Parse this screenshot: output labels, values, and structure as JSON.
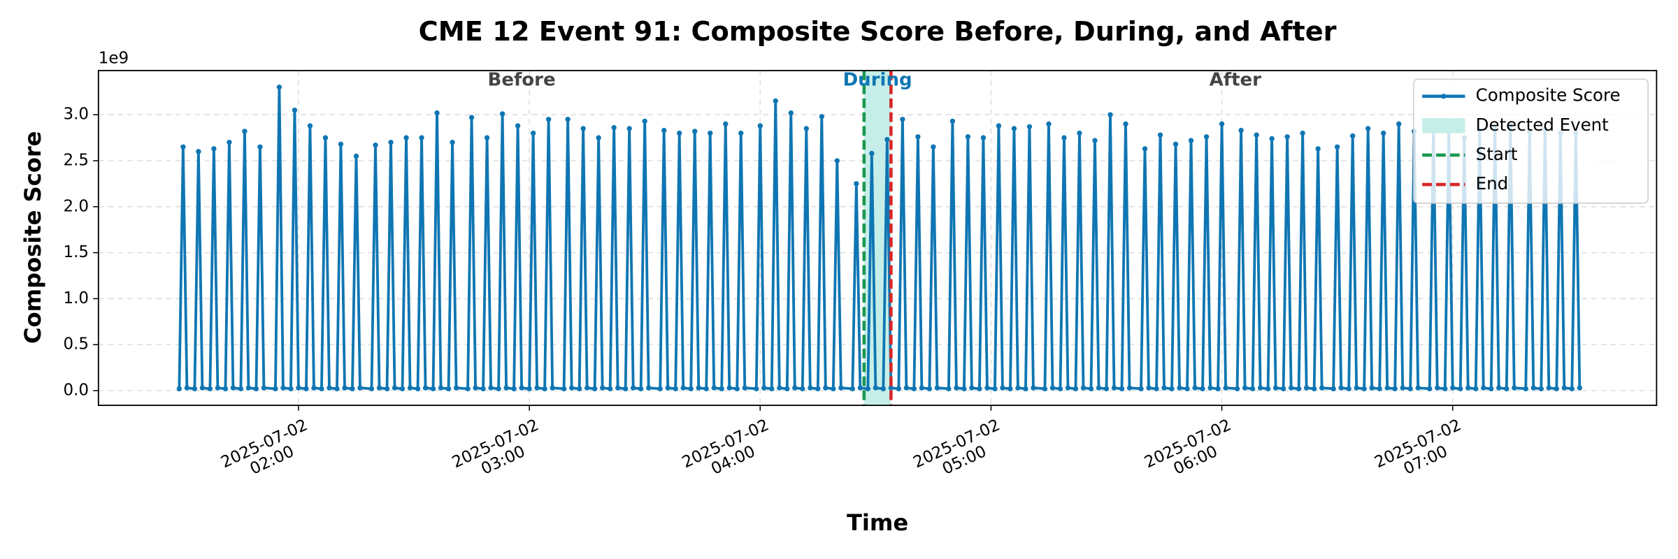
{
  "chart_data": {
    "type": "line",
    "title": "CME 12 Event 91: Composite Score Before, During, and After",
    "xlabel": "Time",
    "ylabel": "Composite Score",
    "y_offset_label": "1e9",
    "x": [
      "2025-07-02 01:29",
      "2025-07-02 01:30",
      "2025-07-02 01:31",
      "2025-07-02 01:33",
      "2025-07-02 01:34",
      "2025-07-02 01:35",
      "2025-07-02 01:37",
      "2025-07-02 01:38",
      "2025-07-02 01:39",
      "2025-07-02 01:41",
      "2025-07-02 01:42",
      "2025-07-02 01:43",
      "2025-07-02 01:45",
      "2025-07-02 01:46",
      "2025-07-02 01:47",
      "2025-07-02 01:49",
      "2025-07-02 01:50",
      "2025-07-02 01:51",
      "2025-07-02 01:54",
      "2025-07-02 01:55",
      "2025-07-02 01:56",
      "2025-07-02 01:58",
      "2025-07-02 01:59",
      "2025-07-02 02:00",
      "2025-07-02 02:02",
      "2025-07-02 02:03",
      "2025-07-02 02:04",
      "2025-07-02 02:06",
      "2025-07-02 02:07",
      "2025-07-02 02:08",
      "2025-07-02 02:10",
      "2025-07-02 02:11",
      "2025-07-02 02:12",
      "2025-07-02 02:14",
      "2025-07-02 02:15",
      "2025-07-02 02:16",
      "2025-07-02 02:19",
      "2025-07-02 02:20",
      "2025-07-02 02:21",
      "2025-07-02 02:23",
      "2025-07-02 02:24",
      "2025-07-02 02:25",
      "2025-07-02 02:27",
      "2025-07-02 02:28",
      "2025-07-02 02:29",
      "2025-07-02 02:31",
      "2025-07-02 02:32",
      "2025-07-02 02:33",
      "2025-07-02 02:35",
      "2025-07-02 02:36",
      "2025-07-02 02:37",
      "2025-07-02 02:39",
      "2025-07-02 02:40",
      "2025-07-02 02:41",
      "2025-07-02 02:44",
      "2025-07-02 02:45",
      "2025-07-02 02:46",
      "2025-07-02 02:48",
      "2025-07-02 02:49",
      "2025-07-02 02:50",
      "2025-07-02 02:52",
      "2025-07-02 02:53",
      "2025-07-02 02:54",
      "2025-07-02 02:56",
      "2025-07-02 02:57",
      "2025-07-02 02:58",
      "2025-07-02 03:00",
      "2025-07-02 03:01",
      "2025-07-02 03:02",
      "2025-07-02 03:04",
      "2025-07-02 03:05",
      "2025-07-02 03:06",
      "2025-07-02 03:09",
      "2025-07-02 03:10",
      "2025-07-02 03:11",
      "2025-07-02 03:13",
      "2025-07-02 03:14",
      "2025-07-02 03:15",
      "2025-07-02 03:17",
      "2025-07-02 03:18",
      "2025-07-02 03:19",
      "2025-07-02 03:21",
      "2025-07-02 03:22",
      "2025-07-02 03:23",
      "2025-07-02 03:25",
      "2025-07-02 03:26",
      "2025-07-02 03:27",
      "2025-07-02 03:29",
      "2025-07-02 03:30",
      "2025-07-02 03:31",
      "2025-07-02 03:34",
      "2025-07-02 03:35",
      "2025-07-02 03:36",
      "2025-07-02 03:38",
      "2025-07-02 03:39",
      "2025-07-02 03:40",
      "2025-07-02 03:42",
      "2025-07-02 03:43",
      "2025-07-02 03:44",
      "2025-07-02 03:46",
      "2025-07-02 03:47",
      "2025-07-02 03:48",
      "2025-07-02 03:50",
      "2025-07-02 03:51",
      "2025-07-02 03:52",
      "2025-07-02 03:54",
      "2025-07-02 03:55",
      "2025-07-02 03:56",
      "2025-07-02 03:59",
      "2025-07-02 04:00",
      "2025-07-02 04:01",
      "2025-07-02 04:03",
      "2025-07-02 04:04",
      "2025-07-02 04:05",
      "2025-07-02 04:07",
      "2025-07-02 04:08",
      "2025-07-02 04:09",
      "2025-07-02 04:11",
      "2025-07-02 04:12",
      "2025-07-02 04:13",
      "2025-07-02 04:15",
      "2025-07-02 04:16",
      "2025-07-02 04:17",
      "2025-07-02 04:19",
      "2025-07-02 04:20",
      "2025-07-02 04:21",
      "2025-07-02 04:24",
      "2025-07-02 04:25",
      "2025-07-02 04:26",
      "2025-07-02 04:28",
      "2025-07-02 04:29",
      "2025-07-02 04:30",
      "2025-07-02 04:32",
      "2025-07-02 04:33",
      "2025-07-02 04:34",
      "2025-07-02 04:36",
      "2025-07-02 04:37",
      "2025-07-02 04:38",
      "2025-07-02 04:40",
      "2025-07-02 04:41",
      "2025-07-02 04:42",
      "2025-07-02 04:44",
      "2025-07-02 04:45",
      "2025-07-02 04:46",
      "2025-07-02 04:49",
      "2025-07-02 04:50",
      "2025-07-02 04:51",
      "2025-07-02 04:53",
      "2025-07-02 04:54",
      "2025-07-02 04:55",
      "2025-07-02 04:57",
      "2025-07-02 04:58",
      "2025-07-02 04:59",
      "2025-07-02 05:01",
      "2025-07-02 05:02",
      "2025-07-02 05:03",
      "2025-07-02 05:05",
      "2025-07-02 05:06",
      "2025-07-02 05:07",
      "2025-07-02 05:09",
      "2025-07-02 05:10",
      "2025-07-02 05:11",
      "2025-07-02 05:14",
      "2025-07-02 05:15",
      "2025-07-02 05:16",
      "2025-07-02 05:18",
      "2025-07-02 05:19",
      "2025-07-02 05:20",
      "2025-07-02 05:22",
      "2025-07-02 05:23",
      "2025-07-02 05:24",
      "2025-07-02 05:26",
      "2025-07-02 05:27",
      "2025-07-02 05:28",
      "2025-07-02 05:30",
      "2025-07-02 05:31",
      "2025-07-02 05:32",
      "2025-07-02 05:34",
      "2025-07-02 05:35",
      "2025-07-02 05:36",
      "2025-07-02 05:39",
      "2025-07-02 05:40",
      "2025-07-02 05:41",
      "2025-07-02 05:43",
      "2025-07-02 05:44",
      "2025-07-02 05:45",
      "2025-07-02 05:47",
      "2025-07-02 05:48",
      "2025-07-02 05:49",
      "2025-07-02 05:51",
      "2025-07-02 05:52",
      "2025-07-02 05:53",
      "2025-07-02 05:55",
      "2025-07-02 05:56",
      "2025-07-02 05:57",
      "2025-07-02 05:59",
      "2025-07-02 06:00",
      "2025-07-02 06:01",
      "2025-07-02 06:04",
      "2025-07-02 06:05",
      "2025-07-02 06:06",
      "2025-07-02 06:08",
      "2025-07-02 06:09",
      "2025-07-02 06:10",
      "2025-07-02 06:12",
      "2025-07-02 06:13",
      "2025-07-02 06:14",
      "2025-07-02 06:16",
      "2025-07-02 06:17",
      "2025-07-02 06:18",
      "2025-07-02 06:20",
      "2025-07-02 06:21",
      "2025-07-02 06:22",
      "2025-07-02 06:24",
      "2025-07-02 06:25",
      "2025-07-02 06:26",
      "2025-07-02 06:29",
      "2025-07-02 06:30",
      "2025-07-02 06:31",
      "2025-07-02 06:33",
      "2025-07-02 06:34",
      "2025-07-02 06:35",
      "2025-07-02 06:37",
      "2025-07-02 06:38",
      "2025-07-02 06:39",
      "2025-07-02 06:41",
      "2025-07-02 06:42",
      "2025-07-02 06:43",
      "2025-07-02 06:45",
      "2025-07-02 06:46",
      "2025-07-02 06:47",
      "2025-07-02 06:49",
      "2025-07-02 06:50",
      "2025-07-02 06:51",
      "2025-07-02 06:54",
      "2025-07-02 06:55",
      "2025-07-02 06:56",
      "2025-07-02 06:58",
      "2025-07-02 06:59",
      "2025-07-02 07:00",
      "2025-07-02 07:02",
      "2025-07-02 07:03",
      "2025-07-02 07:04",
      "2025-07-02 07:06",
      "2025-07-02 07:07",
      "2025-07-02 07:08",
      "2025-07-02 07:10",
      "2025-07-02 07:11",
      "2025-07-02 07:12",
      "2025-07-02 07:14",
      "2025-07-02 07:15",
      "2025-07-02 07:16",
      "2025-07-02 07:19",
      "2025-07-02 07:20",
      "2025-07-02 07:21",
      "2025-07-02 07:23",
      "2025-07-02 07:24",
      "2025-07-02 07:25",
      "2025-07-02 07:27",
      "2025-07-02 07:28",
      "2025-07-02 07:29",
      "2025-07-02 07:31",
      "2025-07-02 07:32",
      "2025-07-02 07:33"
    ],
    "series": [
      {
        "name": "Composite Score",
        "color": "#0f76b3",
        "values": [
          0.02,
          2.65,
          0.03,
          0.02,
          2.6,
          0.03,
          0.02,
          2.63,
          0.03,
          0.02,
          2.7,
          0.03,
          0.02,
          2.82,
          0.03,
          0.02,
          2.65,
          0.03,
          0.02,
          3.3,
          0.03,
          0.02,
          3.05,
          0.03,
          0.02,
          2.88,
          0.03,
          0.02,
          2.75,
          0.03,
          0.02,
          2.68,
          0.03,
          0.02,
          2.55,
          0.03,
          0.02,
          2.67,
          0.03,
          0.02,
          2.7,
          0.03,
          0.02,
          2.75,
          0.03,
          0.02,
          2.75,
          0.03,
          0.02,
          3.02,
          0.03,
          0.02,
          2.7,
          0.03,
          0.02,
          2.97,
          0.03,
          0.02,
          2.75,
          0.03,
          0.02,
          3.01,
          0.03,
          0.02,
          2.88,
          0.03,
          0.02,
          2.8,
          0.03,
          0.02,
          2.95,
          0.03,
          0.02,
          2.95,
          0.03,
          0.02,
          2.85,
          0.03,
          0.02,
          2.75,
          0.03,
          0.02,
          2.86,
          0.03,
          0.02,
          2.85,
          0.03,
          0.02,
          2.93,
          0.03,
          0.02,
          2.83,
          0.03,
          0.02,
          2.8,
          0.03,
          0.02,
          2.82,
          0.03,
          0.02,
          2.8,
          0.03,
          0.02,
          2.9,
          0.03,
          0.02,
          2.8,
          0.03,
          0.02,
          2.88,
          0.03,
          0.02,
          3.15,
          0.03,
          0.02,
          3.02,
          0.03,
          0.02,
          2.85,
          0.03,
          0.02,
          2.98,
          0.03,
          0.02,
          2.5,
          0.03,
          0.02,
          2.25,
          0.03,
          0.02,
          2.58,
          0.03,
          0.02,
          2.73,
          0.03,
          0.02,
          2.95,
          0.03,
          0.02,
          2.76,
          0.03,
          0.02,
          2.65,
          0.03,
          0.02,
          2.93,
          0.03,
          0.02,
          2.76,
          0.03,
          0.02,
          2.75,
          0.03,
          0.02,
          2.88,
          0.03,
          0.02,
          2.85,
          0.03,
          0.02,
          2.87,
          0.03,
          0.02,
          2.9,
          0.03,
          0.02,
          2.75,
          0.03,
          0.02,
          2.8,
          0.03,
          0.02,
          2.72,
          0.03,
          0.02,
          3.0,
          0.03,
          0.02,
          2.9,
          0.03,
          0.02,
          2.63,
          0.03,
          0.02,
          2.78,
          0.03,
          0.02,
          2.68,
          0.03,
          0.02,
          2.72,
          0.03,
          0.02,
          2.76,
          0.03,
          0.02,
          2.9,
          0.03,
          0.02,
          2.83,
          0.03,
          0.02,
          2.78,
          0.03,
          0.02,
          2.74,
          0.03,
          0.02,
          2.76,
          0.03,
          0.02,
          2.8,
          0.03,
          0.02,
          2.63,
          0.03,
          0.02,
          2.65,
          0.03,
          0.02,
          2.77,
          0.03,
          0.02,
          2.85,
          0.03,
          0.02,
          2.8,
          0.03,
          0.02,
          2.9,
          0.03,
          0.02,
          2.82,
          0.03,
          0.02,
          2.85,
          0.03,
          0.02,
          2.88,
          0.03,
          0.02,
          2.75,
          0.03,
          0.02,
          2.83,
          0.03,
          0.02,
          2.85,
          0.03,
          0.02,
          2.88,
          0.03,
          0.02,
          2.82,
          0.03,
          0.02,
          2.85,
          0.03,
          0.02,
          2.8,
          0.03,
          0.02,
          2.8,
          0.03
        ]
      }
    ],
    "event_span": {
      "name": "Detected Event",
      "x": [
        "2025-07-02 04:27",
        "2025-07-02 04:34"
      ],
      "color": "#c6eee9"
    },
    "vlines": [
      {
        "name": "Start",
        "x": "2025-07-02 04:27",
        "color": "#1a9850"
      },
      {
        "name": "End",
        "x": "2025-07-02 04:34",
        "color": "#d62728"
      }
    ],
    "annotations": [
      {
        "text": "Before",
        "color": "#444444"
      },
      {
        "text": "During",
        "color": "#0f76b3"
      },
      {
        "text": "After",
        "color": "#444444"
      }
    ],
    "xlim": [
      "2025-07-02 01:08",
      "2025-07-02 07:53"
    ],
    "xticks": [
      {
        "value": "2025-07-02 02:00",
        "label": "2025-07-02\n02:00"
      },
      {
        "value": "2025-07-02 03:00",
        "label": "2025-07-02\n03:00"
      },
      {
        "value": "2025-07-02 04:00",
        "label": "2025-07-02\n04:00"
      },
      {
        "value": "2025-07-02 05:00",
        "label": "2025-07-02\n05:00"
      },
      {
        "value": "2025-07-02 06:00",
        "label": "2025-07-02\n06:00"
      },
      {
        "value": "2025-07-02 07:00",
        "label": "2025-07-02\n07:00"
      }
    ],
    "ylim": [
      -0.16,
      3.48
    ],
    "yticks": [
      {
        "value": 0,
        "label": "0.0"
      },
      0.5,
      {
        "value": 1,
        "label": "1.0"
      },
      1.5,
      {
        "value": 2,
        "label": "2.0"
      },
      2.5,
      {
        "value": 3,
        "label": "3.0"
      }
    ],
    "grid": true,
    "legend": "upper right"
  }
}
